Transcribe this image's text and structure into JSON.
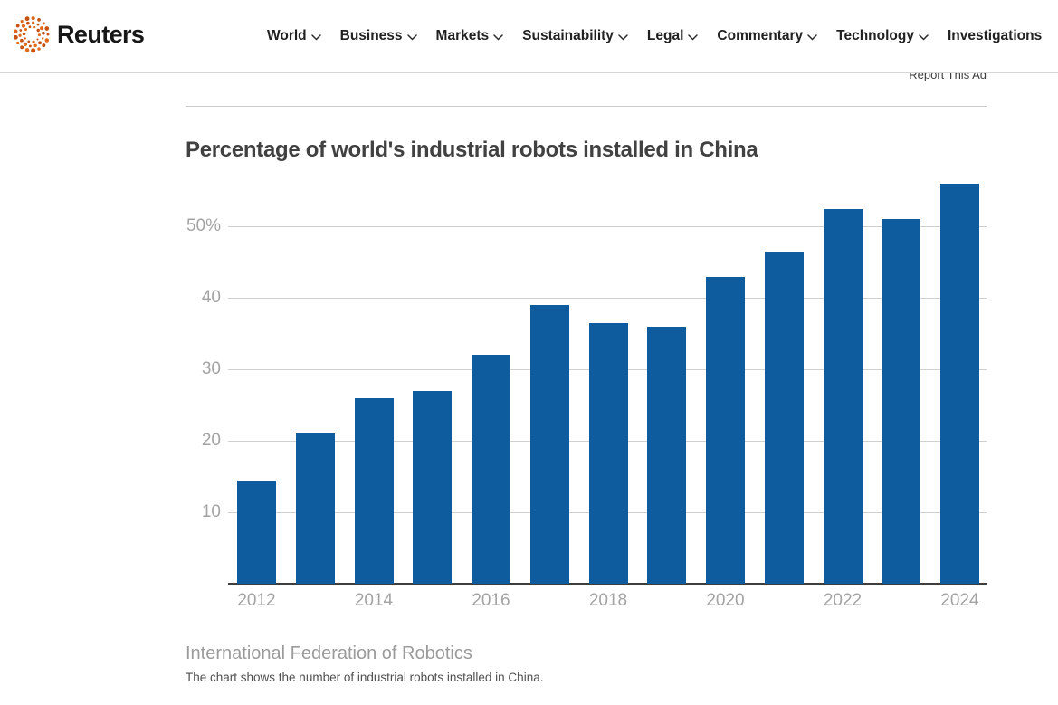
{
  "brand": {
    "name": "Reuters",
    "logo_orange": "#c7510f",
    "logo_orange_light": "#e06a1a"
  },
  "header": {
    "nav": [
      {
        "label": "World",
        "chevron": true
      },
      {
        "label": "Business",
        "chevron": true
      },
      {
        "label": "Markets",
        "chevron": true
      },
      {
        "label": "Sustainability",
        "chevron": true
      },
      {
        "label": "Legal",
        "chevron": true
      },
      {
        "label": "Commentary",
        "chevron": true
      },
      {
        "label": "Technology",
        "chevron": true
      },
      {
        "label": "Investigations",
        "chevron": false
      }
    ]
  },
  "ad": {
    "report_label": "Report This Ad"
  },
  "chart_data": {
    "type": "bar",
    "title": "Percentage of world's industrial robots installed in China",
    "source": "International Federation of Robotics",
    "note": "The chart shows the number of industrial robots installed in China.",
    "categories": [
      "2012",
      "2013",
      "2014",
      "2015",
      "2016",
      "2017",
      "2018",
      "2019",
      "2020",
      "2021",
      "2022",
      "2023",
      "2024"
    ],
    "values": [
      14.5,
      21,
      26,
      27,
      32,
      39,
      36.5,
      36,
      43,
      46.5,
      52.5,
      51,
      56
    ],
    "bar_color": "#0e5c9e",
    "xlabel": "",
    "ylabel": "",
    "ylim": [
      0,
      57
    ],
    "y_ticks": [
      {
        "value": 10,
        "label": "10"
      },
      {
        "value": 20,
        "label": "20"
      },
      {
        "value": 30,
        "label": "30"
      },
      {
        "value": 40,
        "label": "40"
      },
      {
        "value": 50,
        "label": "50%"
      }
    ],
    "x_tick_every": 2,
    "grid": true,
    "legend": false
  }
}
